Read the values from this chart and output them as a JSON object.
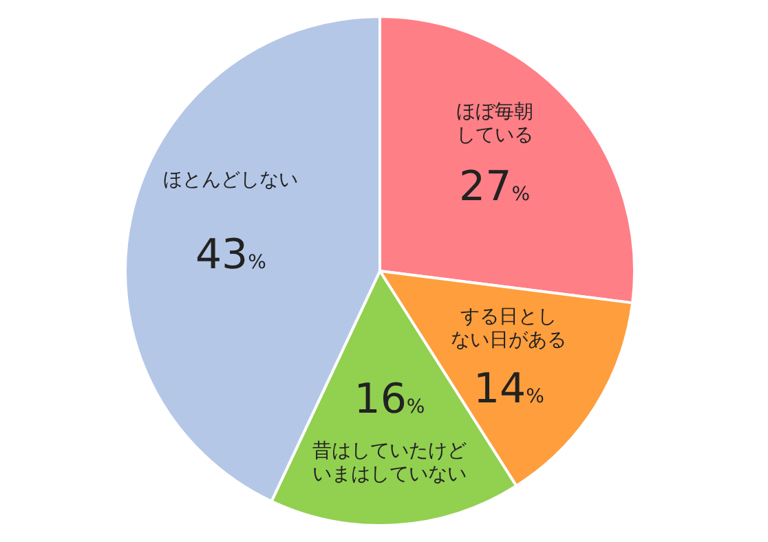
{
  "chart_data": {
    "type": "pie",
    "categories": [
      "ほぼ毎朝している",
      "する日としない日がある",
      "昔はしていたけどいまはしていない",
      "ほとんどしない"
    ],
    "values": [
      27,
      14,
      16,
      43
    ],
    "colors": [
      "#ff7f86",
      "#ff9e3d",
      "#92d050",
      "#b4c7e7"
    ],
    "value_labels": [
      "27%",
      "14%",
      "16%",
      "43%"
    ]
  }
}
